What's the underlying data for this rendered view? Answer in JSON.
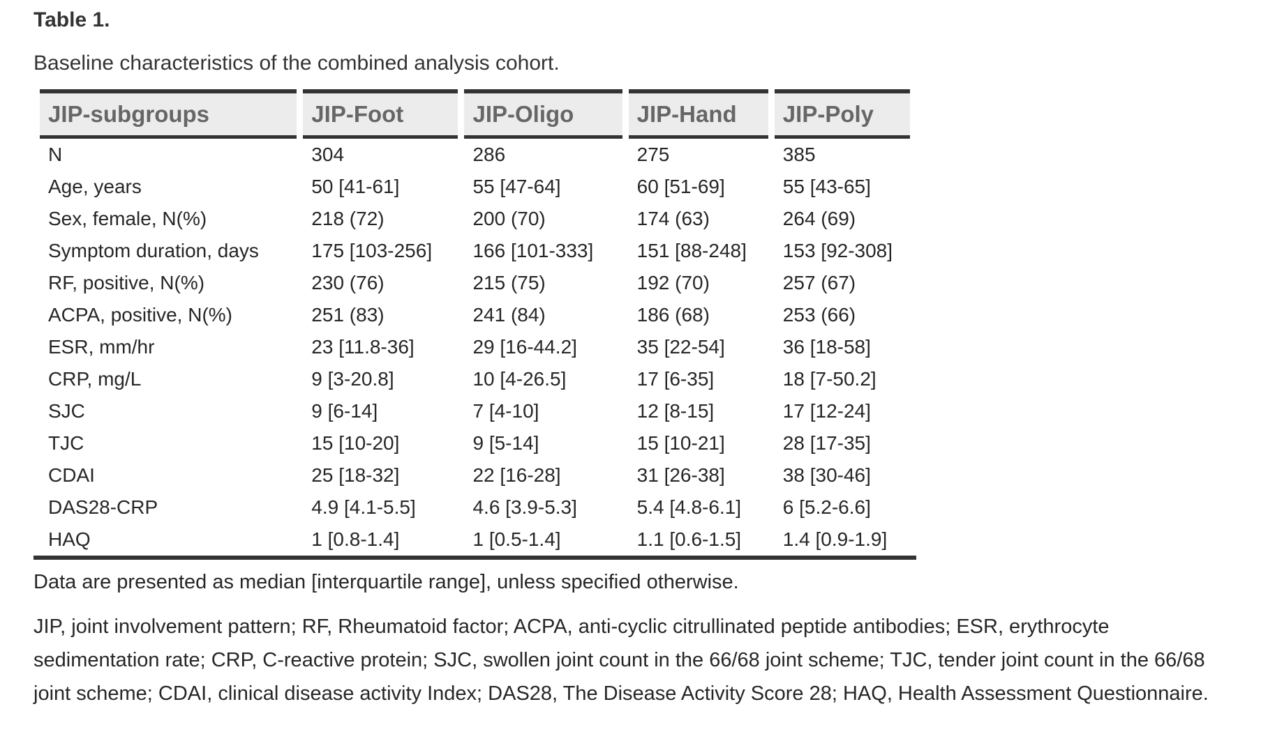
{
  "page": {
    "title": "Table 1.",
    "caption": "Baseline characteristics of the combined analysis cohort."
  },
  "table": {
    "headers": [
      "JIP-subgroups",
      "JIP-Foot",
      "JIP-Oligo",
      "JIP-Hand",
      "JIP-Poly"
    ],
    "rows": [
      {
        "label": "N",
        "values": [
          "304",
          "286",
          "275",
          "385"
        ]
      },
      {
        "label": "Age, years",
        "values": [
          "50 [41-61]",
          "55 [47-64]",
          "60 [51-69]",
          "55 [43-65]"
        ]
      },
      {
        "label": "Sex, female, N(%)",
        "values": [
          "218 (72)",
          "200 (70)",
          "174 (63)",
          "264 (69)"
        ]
      },
      {
        "label": "Symptom duration, days",
        "values": [
          "175 [103-256]",
          "166 [101-333]",
          "151 [88-248]",
          "153 [92-308]"
        ]
      },
      {
        "label": "RF, positive, N(%)",
        "values": [
          "230 (76)",
          "215 (75)",
          "192 (70)",
          "257 (67)"
        ]
      },
      {
        "label": "ACPA, positive, N(%)",
        "values": [
          "251 (83)",
          "241 (84)",
          "186 (68)",
          "253 (66)"
        ]
      },
      {
        "label": "ESR, mm/hr",
        "values": [
          "23 [11.8-36]",
          "29 [16-44.2]",
          "35 [22-54]",
          "36 [18-58]"
        ]
      },
      {
        "label": "CRP, mg/L",
        "values": [
          "9 [3-20.8]",
          "10 [4-26.5]",
          "17 [6-35]",
          "18 [7-50.2]"
        ]
      },
      {
        "label": "SJC",
        "values": [
          "9 [6-14]",
          "7 [4-10]",
          "12 [8-15]",
          "17 [12-24]"
        ]
      },
      {
        "label": "TJC",
        "values": [
          "15 [10-20]",
          "9 [5-14]",
          "15 [10-21]",
          "28 [17-35]"
        ]
      },
      {
        "label": "CDAI",
        "values": [
          "25 [18-32]",
          "22 [16-28]",
          "31 [26-38]",
          "38 [30-46]"
        ]
      },
      {
        "label": "DAS28-CRP",
        "values": [
          "4.9 [4.1-5.5]",
          "4.6 [3.9-5.3]",
          "5.4 [4.8-6.1]",
          "6 [5.2-6.6]"
        ]
      },
      {
        "label": "HAQ",
        "values": [
          "1 [0.8-1.4]",
          "1 [0.5-1.4]",
          "1.1 [0.6-1.5]",
          "1.4 [0.9-1.9]"
        ]
      }
    ]
  },
  "footnotes": {
    "data_presentation": "Data are presented as median [interquartile range], unless specified otherwise.",
    "abbreviations": "JIP, joint involvement pattern; RF, Rheumatoid factor; ACPA, anti-cyclic citrullinated peptide antibodies; ESR, erythrocyte sedimentation rate; CRP, C-reactive protein; SJC, swollen joint count in the 66/68 joint scheme; TJC, tender joint count in the 66/68 joint scheme; CDAI, clinical disease activity Index; DAS28, The Disease Activity Score 28; HAQ, Health Assessment Questionnaire."
  },
  "colors": {
    "body_text": "#262626",
    "header_text": "#666666",
    "header_background": "#ececec",
    "table_border": "#333333",
    "page_background": "#ffffff"
  }
}
